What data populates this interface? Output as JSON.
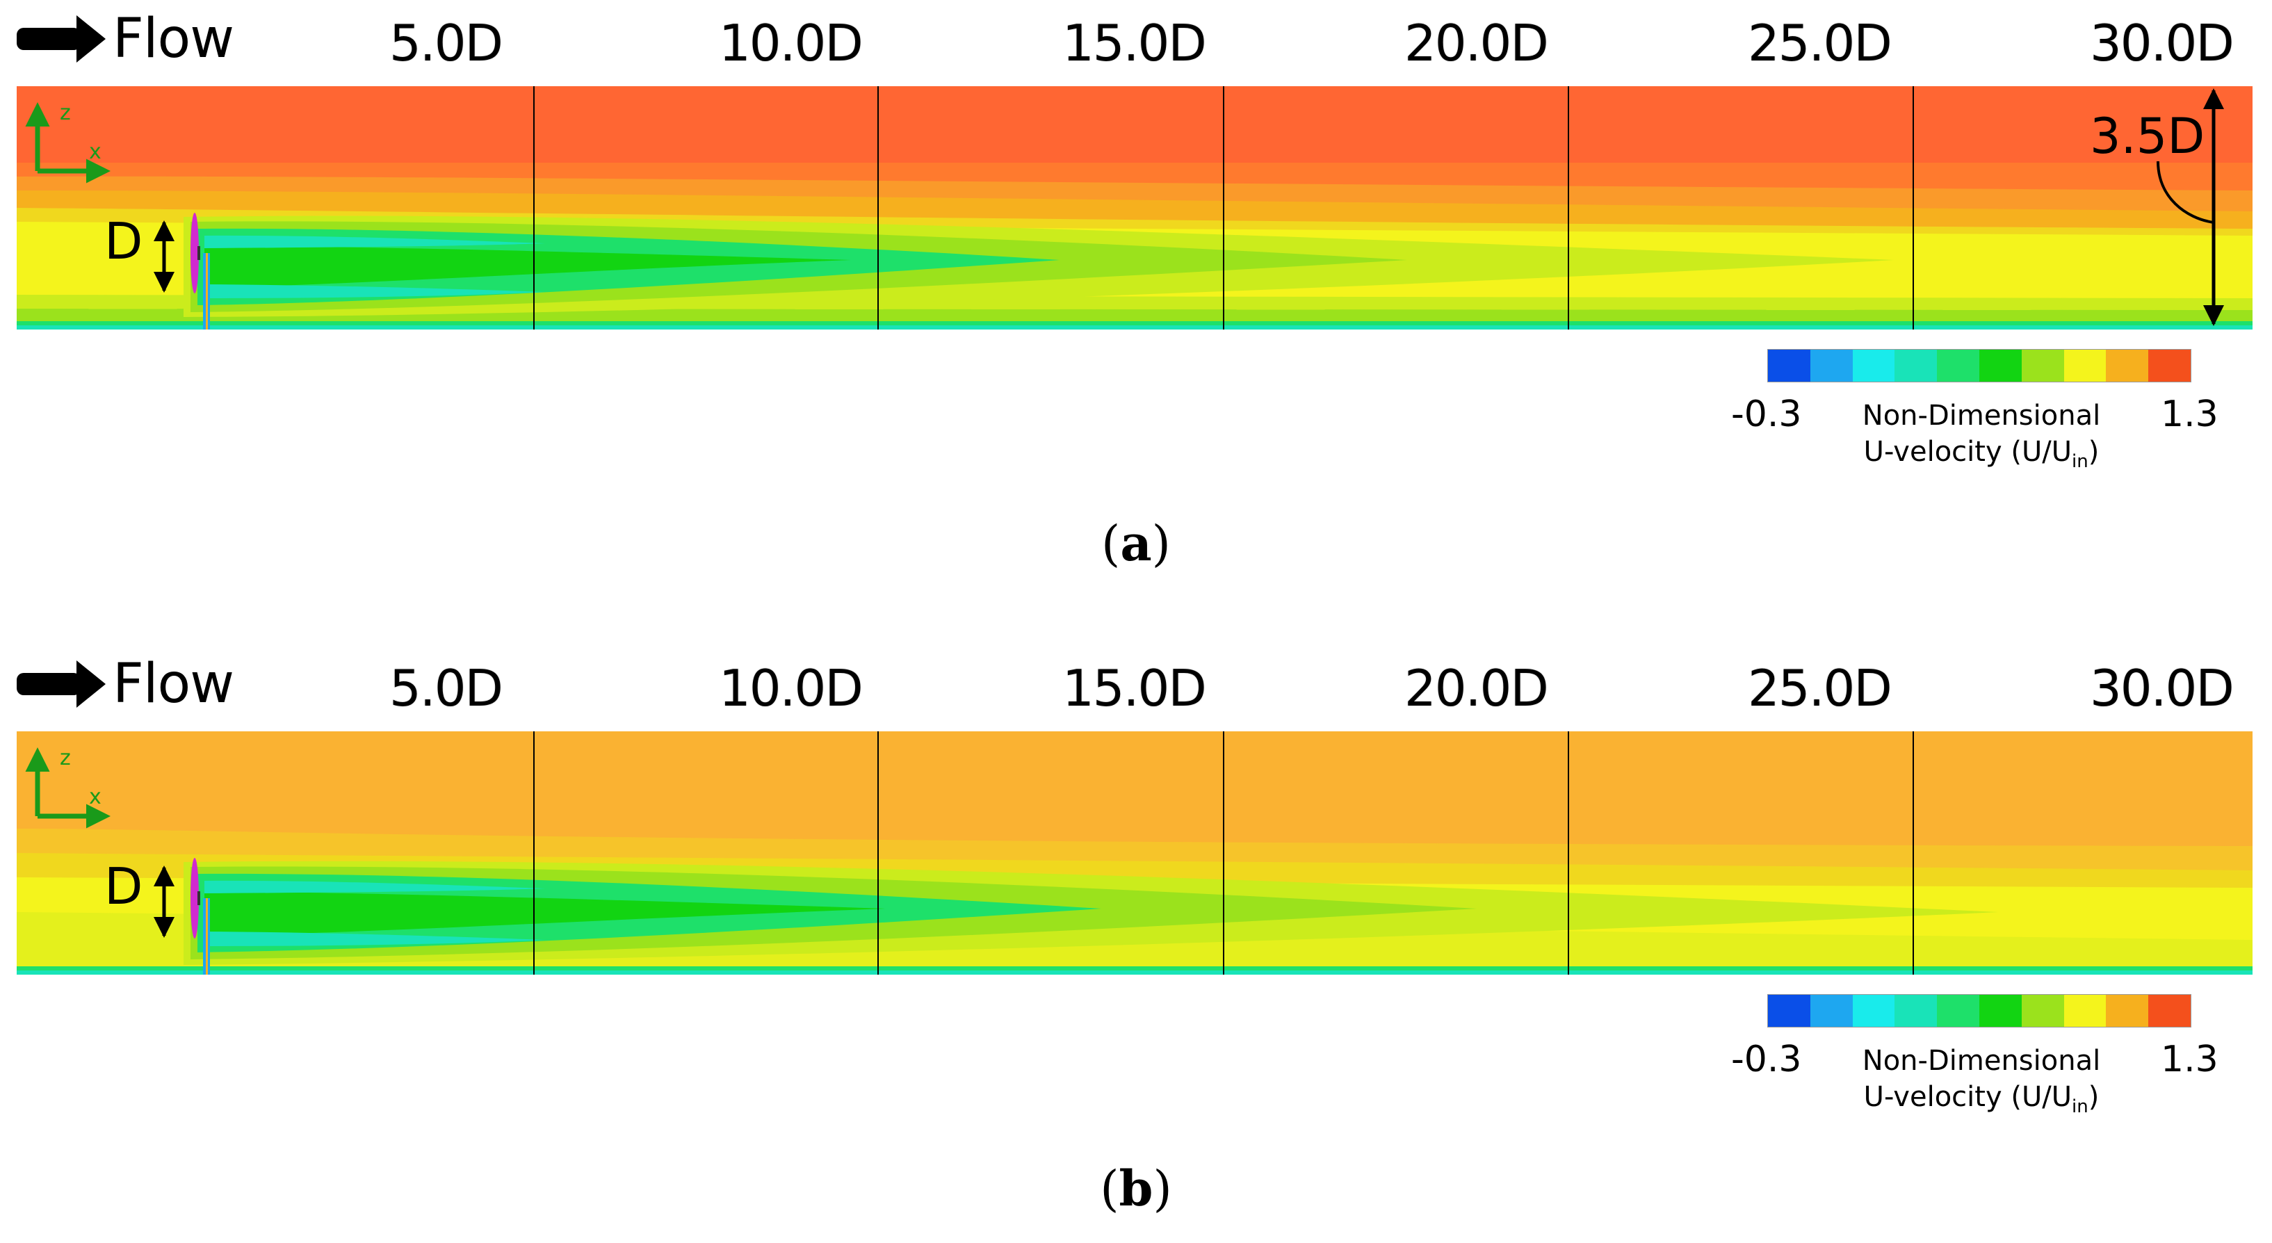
{
  "figure": {
    "flow_label": "Flow",
    "ticks": [
      "5.0D",
      "10.0D",
      "15.0D",
      "20.0D",
      "25.0D",
      "30.0D"
    ],
    "axis_labels": {
      "z": "z",
      "x": "x"
    },
    "diameter_label": "D",
    "height_label": "3.5D",
    "colorbar": {
      "min_label": "-0.3",
      "max_label": "1.3",
      "title_line1": "Non-Dimensional",
      "title_line2_prefix": "U-velocity (U/U",
      "title_subscript": "in",
      "title_line2_suffix": ")",
      "colors": [
        "#0a4fe8",
        "#1ea7f0",
        "#19ebeb",
        "#19e3b8",
        "#1ee06a",
        "#12d412",
        "#9be21c",
        "#f4f41c",
        "#f6b01e",
        "#f4501c"
      ]
    },
    "panels": [
      {
        "label": "a",
        "inflow_color": "#ff6633"
      },
      {
        "label": "b",
        "inflow_color": "#fab232"
      }
    ]
  }
}
